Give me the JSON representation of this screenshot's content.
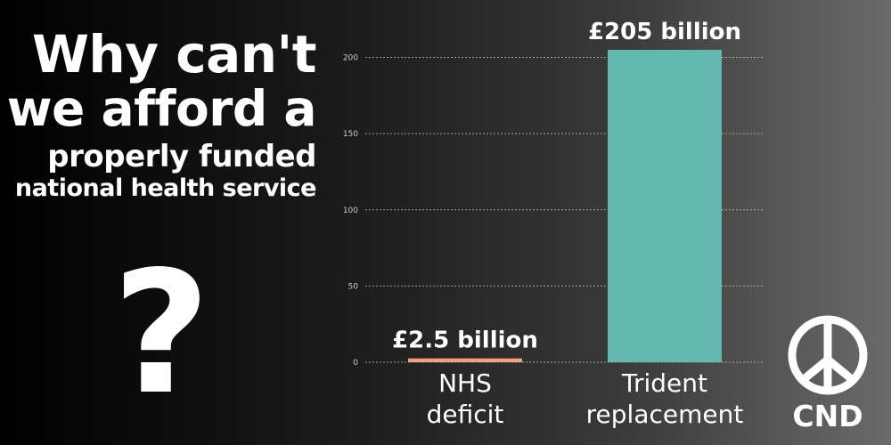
{
  "headline": {
    "line1": "Why can't",
    "line2": "we afford a",
    "line3": "properly funded",
    "line4": "national health service"
  },
  "question_mark": "?",
  "logo": {
    "text": "CND",
    "icon": "peace-symbol-icon"
  },
  "chart_data": {
    "type": "bar",
    "categories": [
      [
        "NHS",
        "deficit"
      ],
      [
        "Trident",
        "replacement"
      ]
    ],
    "values": [
      2.5,
      205
    ],
    "data_labels": [
      "£2.5 billion",
      "£205 billion"
    ],
    "colors": [
      "#f2a07e",
      "#63b9b0"
    ],
    "yticks": [
      0,
      50,
      100,
      150,
      200
    ],
    "ylim": [
      0,
      205
    ],
    "grid": true,
    "title": "",
    "xlabel": "",
    "ylabel": ""
  }
}
